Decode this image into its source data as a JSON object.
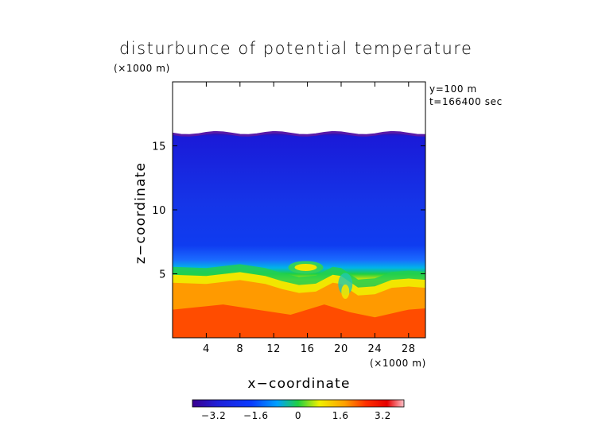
{
  "chart_data": {
    "type": "heatmap",
    "title": "disturbunce of potential temperature",
    "y_scale_note": "(×1000 m)",
    "x_scale_note": "(×1000 m)",
    "info_lines": [
      "y=100 m",
      "t=166400 sec"
    ],
    "xlabel": "x−coordinate",
    "ylabel": "z−coordinate",
    "xlim": [
      0,
      30
    ],
    "ylim": [
      0,
      20
    ],
    "x_ticks": [
      4,
      8,
      12,
      16,
      20,
      24,
      28
    ],
    "x_tick_labels": [
      "4",
      "8",
      "12",
      "16",
      "20",
      "24",
      "28"
    ],
    "y_ticks": [
      5,
      10,
      15
    ],
    "y_tick_labels": [
      "5",
      "10",
      "15"
    ],
    "colorbar": {
      "range": [
        -4,
        4
      ],
      "ticks": [
        -3.2,
        -1.6,
        0,
        1.6,
        3.2
      ],
      "tick_labels": [
        "−3.2",
        "−1.6",
        "0",
        "1.6",
        "3.2"
      ]
    },
    "domain_top_km": 16,
    "field_description_levels": {
      "upper_region_value_approx": -3.0,
      "lower_region_value_approx": 2.8,
      "transition_height_km": 5
    }
  },
  "colors": {
    "colormap": [
      "#3a0090",
      "#1f20d8",
      "#0a3cff",
      "#00a0ff",
      "#00d8c0",
      "#20d040",
      "#f0f000",
      "#ffa000",
      "#ff3000",
      "#e60000",
      "#ffb0b0"
    ]
  }
}
